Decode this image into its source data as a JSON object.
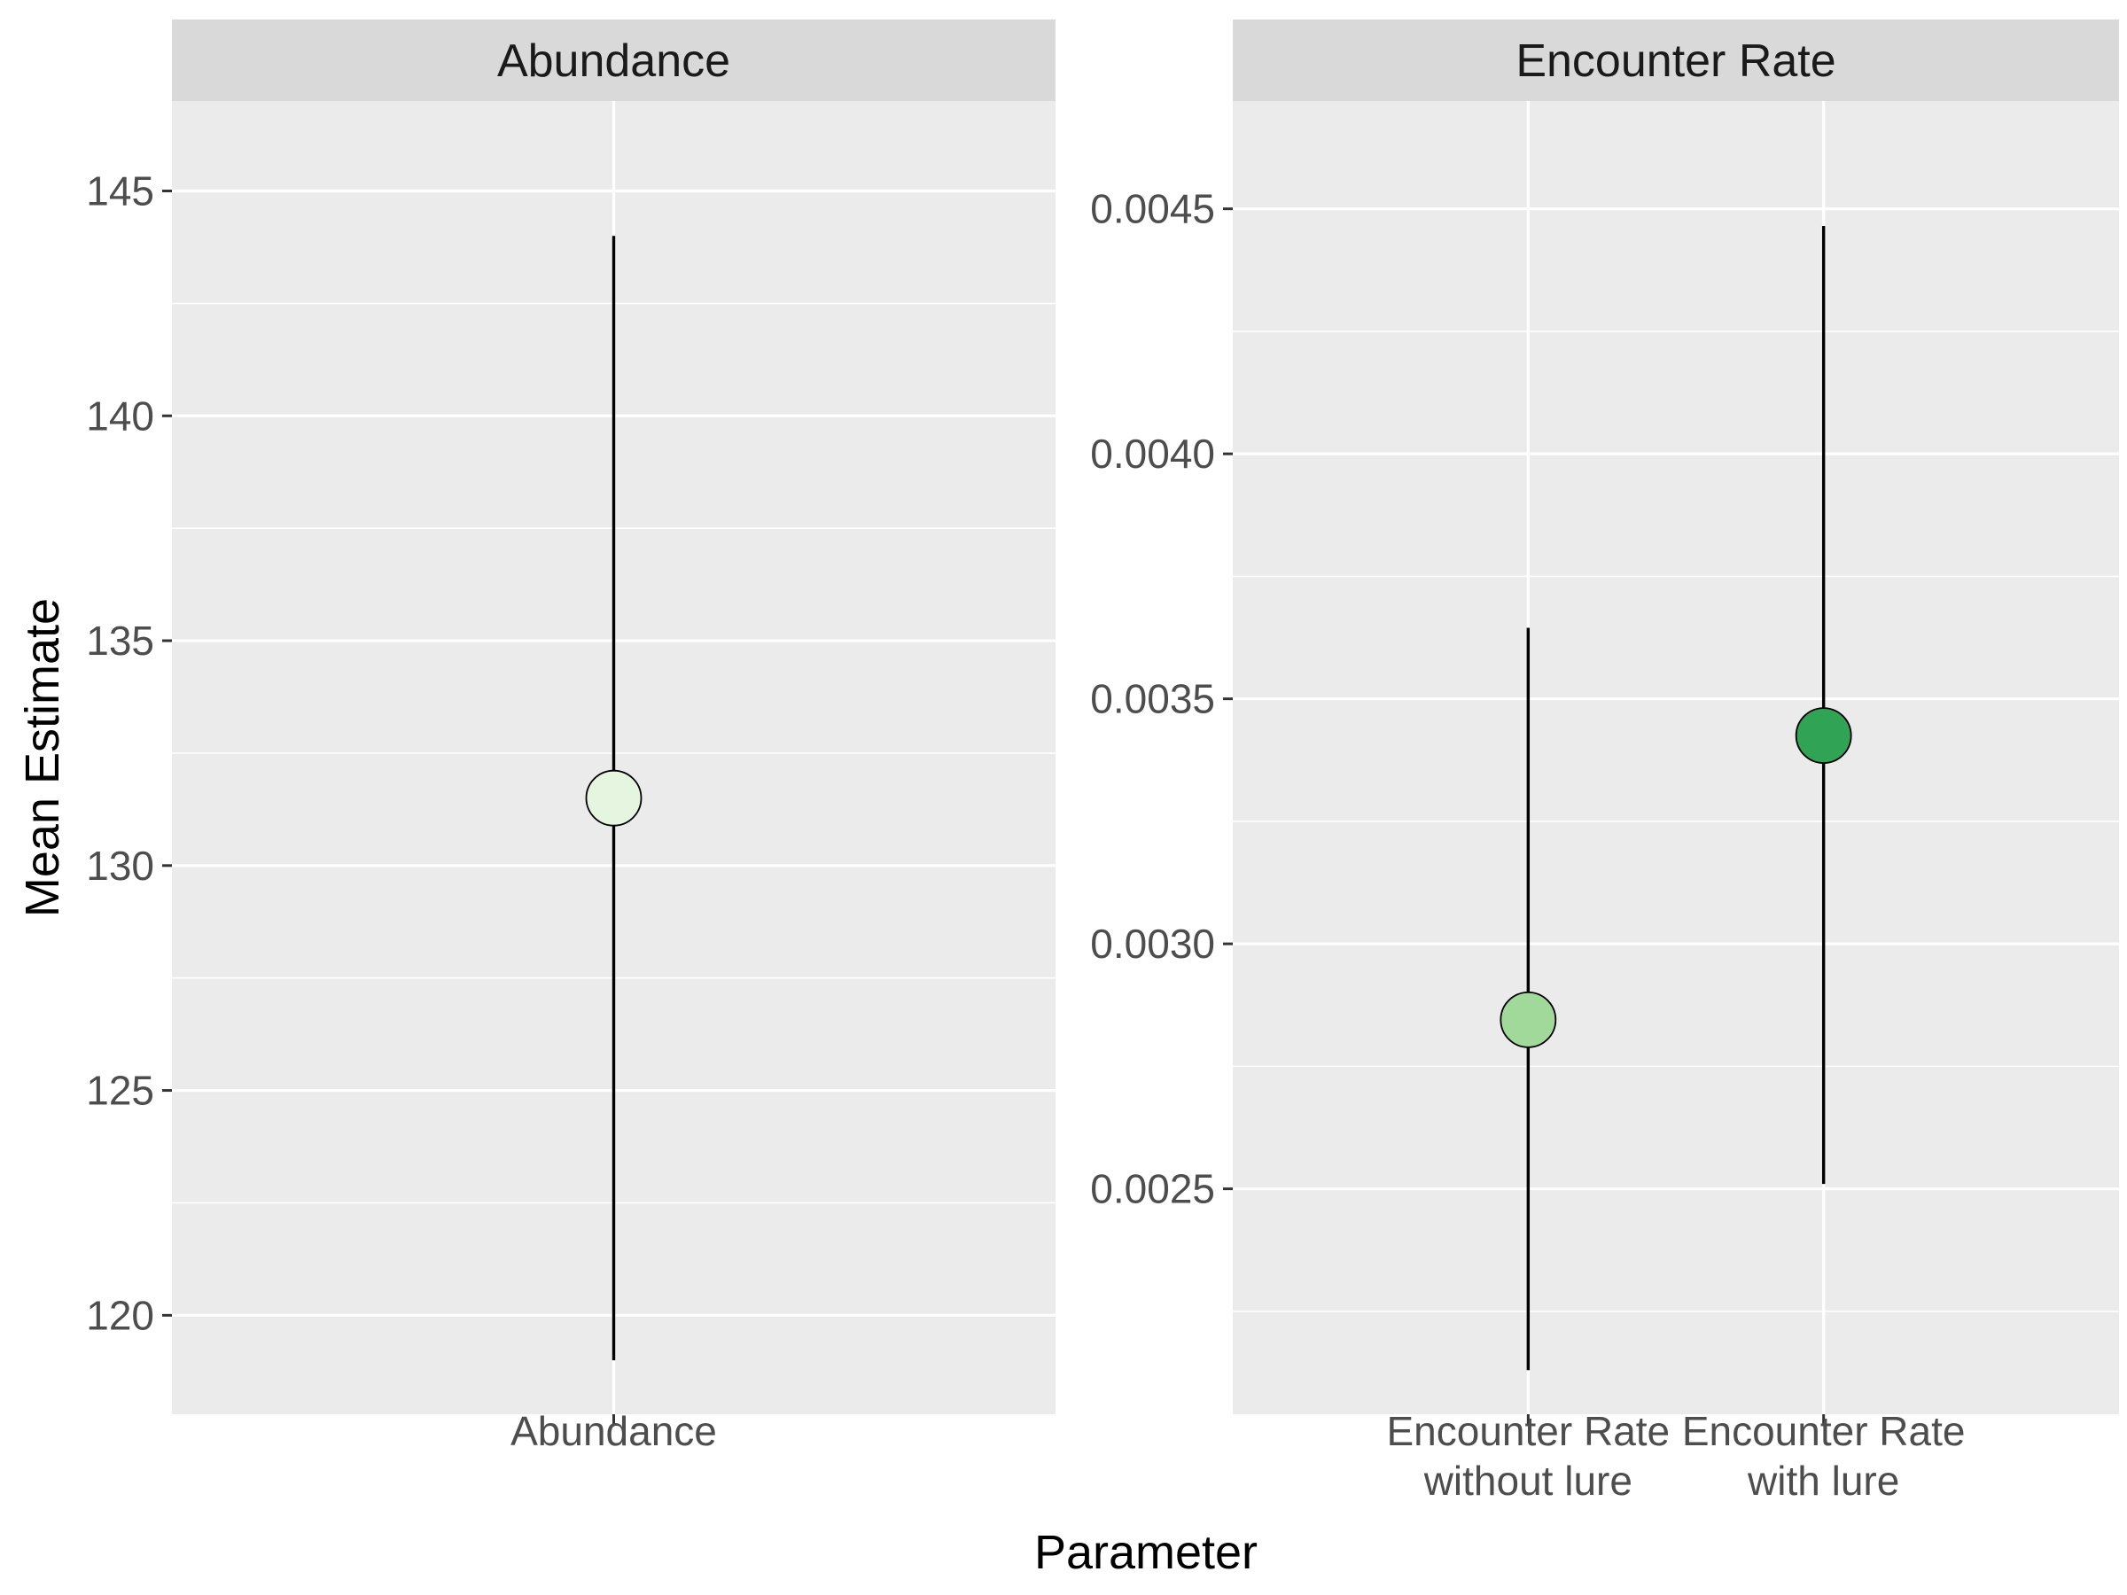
{
  "chart_data": {
    "type": "scatter",
    "xlabel": "Parameter",
    "ylabel": "Mean Estimate",
    "grid": true,
    "legend": "none",
    "colors": {
      "panel_background": "#ebebeb",
      "strip_background": "#d9d9d9",
      "grid_line": "#ffffff",
      "error_bar": "#000000",
      "point_outline": "#000000"
    },
    "panels": [
      {
        "strip_label": "Abundance",
        "ylim": [
          117.8,
          147.0
        ],
        "y_ticks": [
          "120",
          "125",
          "130",
          "135",
          "140",
          "145"
        ],
        "y_tick_values": [
          120,
          125,
          130,
          135,
          140,
          145
        ],
        "categories": [
          "Abundance"
        ],
        "points": [
          {
            "category": "Abundance",
            "y": 131.5,
            "lower": 119.0,
            "upper": 144.0,
            "fill": "#e5f5e0"
          }
        ]
      },
      {
        "strip_label": "Encounter Rate",
        "ylim": [
          0.00204,
          0.00472
        ],
        "y_ticks": [
          "0.0025",
          "0.0030",
          "0.0035",
          "0.0040",
          "0.0045"
        ],
        "y_tick_values": [
          0.0025,
          0.003,
          0.0035,
          0.004,
          0.0045
        ],
        "categories": [
          "Encounter Rate\nwithout lure",
          "Encounter Rate\nwith lure"
        ],
        "points": [
          {
            "category": "Encounter Rate\nwithout lure",
            "y": 0.002845,
            "lower": 0.00213,
            "upper": 0.003645,
            "fill": "#a1d99b"
          },
          {
            "category": "Encounter Rate\nwith lure",
            "y": 0.003425,
            "lower": 0.00251,
            "upper": 0.004465,
            "fill": "#31a354"
          }
        ]
      }
    ]
  }
}
